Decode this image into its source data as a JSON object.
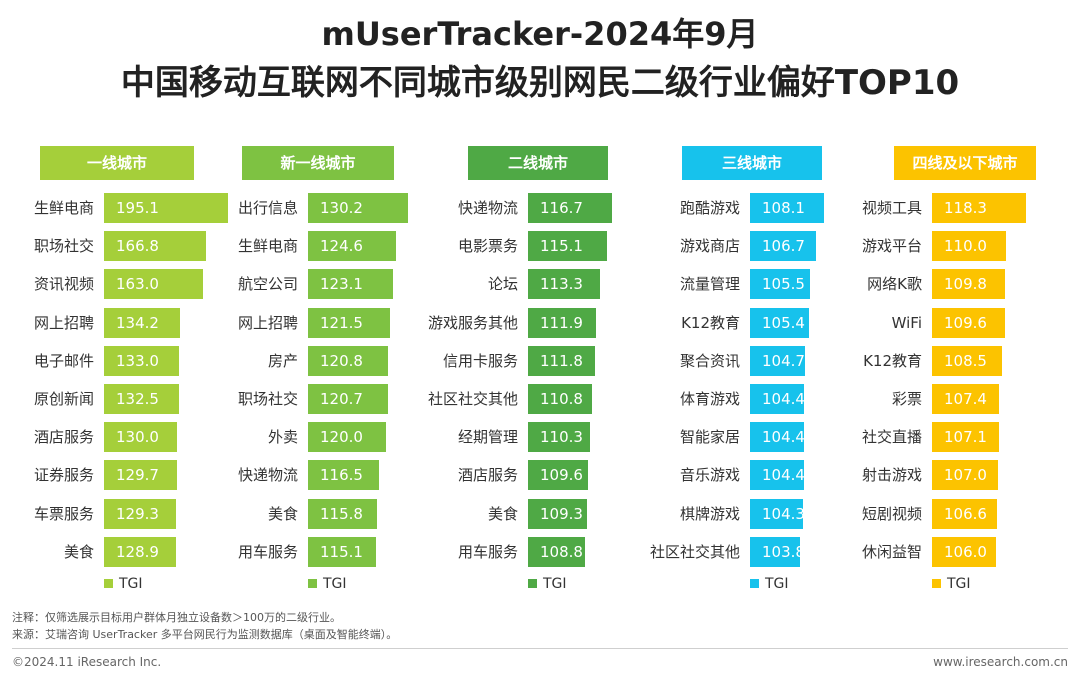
{
  "title_line1": "mUserTracker-2024年9月",
  "title_line2": "中国移动互联网不同城市级别网民二级行业偏好TOP10",
  "chart_data": [
    {
      "type": "bar",
      "orientation": "horizontal",
      "title": "一线城市",
      "color": "#a5cf3a",
      "legend": "TGI",
      "categories": [
        "生鲜电商",
        "职场社交",
        "资讯视频",
        "网上招聘",
        "电子邮件",
        "原创新闻",
        "酒店服务",
        "证券服务",
        "车票服务",
        "美食"
      ],
      "values": [
        195.1,
        166.8,
        163.0,
        134.2,
        133.0,
        132.5,
        130.0,
        129.7,
        129.3,
        128.9
      ]
    },
    {
      "type": "bar",
      "orientation": "horizontal",
      "title": "新一线城市",
      "color": "#7ec242",
      "legend": "TGI",
      "categories": [
        "出行信息",
        "生鲜电商",
        "航空公司",
        "网上招聘",
        "房产",
        "职场社交",
        "外卖",
        "快递物流",
        "美食",
        "用车服务"
      ],
      "values": [
        130.2,
        124.6,
        123.1,
        121.5,
        120.8,
        120.7,
        120.0,
        116.5,
        115.8,
        115.1
      ]
    },
    {
      "type": "bar",
      "orientation": "horizontal",
      "title": "二线城市",
      "color": "#4fa945",
      "legend": "TGI",
      "categories": [
        "快递物流",
        "电影票务",
        "论坛",
        "游戏服务其他",
        "信用卡服务",
        "社区社交其他",
        "经期管理",
        "酒店服务",
        "美食",
        "用车服务"
      ],
      "values": [
        116.7,
        115.1,
        113.3,
        111.9,
        111.8,
        110.8,
        110.3,
        109.6,
        109.3,
        108.8
      ]
    },
    {
      "type": "bar",
      "orientation": "horizontal",
      "title": "三线城市",
      "color": "#17c2ec",
      "legend": "TGI",
      "categories": [
        "跑酷游戏",
        "游戏商店",
        "流量管理",
        "K12教育",
        "聚合资讯",
        "体育游戏",
        "智能家居",
        "音乐游戏",
        "棋牌游戏",
        "社区社交其他"
      ],
      "values": [
        108.1,
        106.7,
        105.5,
        105.4,
        104.7,
        104.4,
        104.4,
        104.4,
        104.3,
        103.8
      ]
    },
    {
      "type": "bar",
      "orientation": "horizontal",
      "title": "四线及以下城市",
      "color": "#fcc300",
      "legend": "TGI",
      "categories": [
        "视频工具",
        "游戏平台",
        "网络K歌",
        "WiFi",
        "K12教育",
        "彩票",
        "社交直播",
        "射击游戏",
        "短剧视频",
        "休闲益智"
      ],
      "values": [
        118.3,
        110.0,
        109.8,
        109.6,
        108.5,
        107.4,
        107.1,
        107.0,
        106.6,
        106.0
      ]
    }
  ],
  "note": "注释：仅筛选展示目标用户群体月独立设备数＞100万的二级行业。",
  "source": "来源：艾瑞咨询 UserTracker 多平台网民行为监测数据库（桌面及智能终端）。",
  "copyright": "©2024.11 iResearch Inc.",
  "website": "www.iresearch.com.cn"
}
